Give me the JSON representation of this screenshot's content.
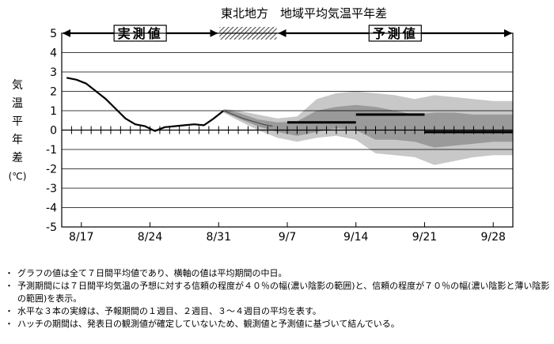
{
  "chart_data": {
    "type": "line",
    "title": "東北地方　地域平均気温平年差",
    "ylabel": "気温平年差（℃）",
    "ylabel_chars": [
      "気",
      "温",
      "平",
      "年",
      "差"
    ],
    "ylabel_unit": "(℃)",
    "ylim": [
      -5,
      5
    ],
    "yticks": [
      5,
      4,
      3,
      2,
      1,
      0,
      -1,
      -2,
      -3,
      -4,
      -5
    ],
    "xlim": [
      0,
      46
    ],
    "xticks": [
      {
        "x": 2,
        "label": "8/17"
      },
      {
        "x": 9,
        "label": "8/24"
      },
      {
        "x": 16,
        "label": "8/31"
      },
      {
        "x": 23,
        "label": "9/7"
      },
      {
        "x": 30,
        "label": "9/14"
      },
      {
        "x": 37,
        "label": "9/21"
      },
      {
        "x": 44,
        "label": "9/28"
      }
    ],
    "grid": true,
    "periods": {
      "observed_label": "実測値",
      "forecast_label": "予測値",
      "observed": [
        0,
        16
      ],
      "hatch": [
        16,
        22
      ],
      "forecast": [
        22,
        46
      ]
    },
    "observed": {
      "x": [
        0.5,
        1.5,
        2.5,
        3.5,
        4.5,
        5.5,
        6.5,
        7.5,
        8.5,
        9.5,
        10.5,
        11.5,
        12.5,
        13.5,
        14.5,
        15.5,
        16.5
      ],
      "y": [
        2.7,
        2.6,
        2.4,
        2.0,
        1.6,
        1.1,
        0.6,
        0.3,
        0.2,
        -0.05,
        0.15,
        0.2,
        0.25,
        0.3,
        0.25,
        0.6,
        1.0
      ]
    },
    "connector": {
      "x": [
        16.5,
        17.5,
        18.5,
        19.5,
        20.5,
        21.5
      ],
      "y": [
        1.0,
        0.8,
        0.6,
        0.45,
        0.3,
        0.2
      ]
    },
    "band_70": {
      "x": [
        16.5,
        18,
        20,
        22,
        24,
        26,
        28,
        30,
        32,
        34,
        36,
        38,
        40,
        42,
        44,
        46
      ],
      "upper": [
        1.1,
        1.0,
        0.8,
        0.6,
        0.7,
        1.6,
        1.9,
        2.0,
        1.9,
        1.8,
        1.6,
        1.8,
        1.7,
        1.6,
        1.5,
        1.5
      ],
      "lower": [
        0.9,
        0.5,
        0.0,
        -0.4,
        -0.6,
        -0.4,
        -0.3,
        -0.5,
        -1.2,
        -1.3,
        -1.4,
        -1.8,
        -1.6,
        -1.4,
        -1.3,
        -1.3
      ]
    },
    "band_40": {
      "x": [
        16.5,
        18,
        20,
        22,
        24,
        26,
        28,
        30,
        32,
        34,
        36,
        38,
        40,
        42,
        44,
        46
      ],
      "upper": [
        1.05,
        0.9,
        0.55,
        0.4,
        0.45,
        1.0,
        1.2,
        1.3,
        1.2,
        1.0,
        0.8,
        0.9,
        0.9,
        0.8,
        0.8,
        0.8
      ],
      "lower": [
        0.95,
        0.6,
        0.2,
        -0.1,
        -0.3,
        -0.1,
        0.1,
        0.0,
        -0.5,
        -0.5,
        -0.6,
        -0.9,
        -0.8,
        -0.7,
        -0.6,
        -0.6
      ]
    },
    "forecast_means": [
      {
        "x0": 23,
        "x1": 30,
        "y": 0.4
      },
      {
        "x0": 30,
        "x1": 37,
        "y": 0.8
      },
      {
        "x0": 37,
        "x1": 46,
        "y": -0.1
      }
    ],
    "colors": {
      "band_70": "#c8c8c8",
      "band_40": "#9a9a9a",
      "line": "#000000",
      "grid": "#000000"
    }
  },
  "notes": [
    "グラフの値は全て７日間平均値であり、横軸の値は平均期間の中日。",
    "予測期間には７日間平均気温の予想に対する信頼の程度が４０％の幅(濃い陰影の範囲)と、信頼の程度が７０％の幅(濃い陰影と薄い陰影の範囲)を表示。",
    "水平な３本の実線は、予報期間の１週目、２週目、３～４週目の平均を表す。",
    "ハッチの期間は、発表日の観測値が確定していないため、観測値と予測値に基づいて結んでいる。"
  ]
}
